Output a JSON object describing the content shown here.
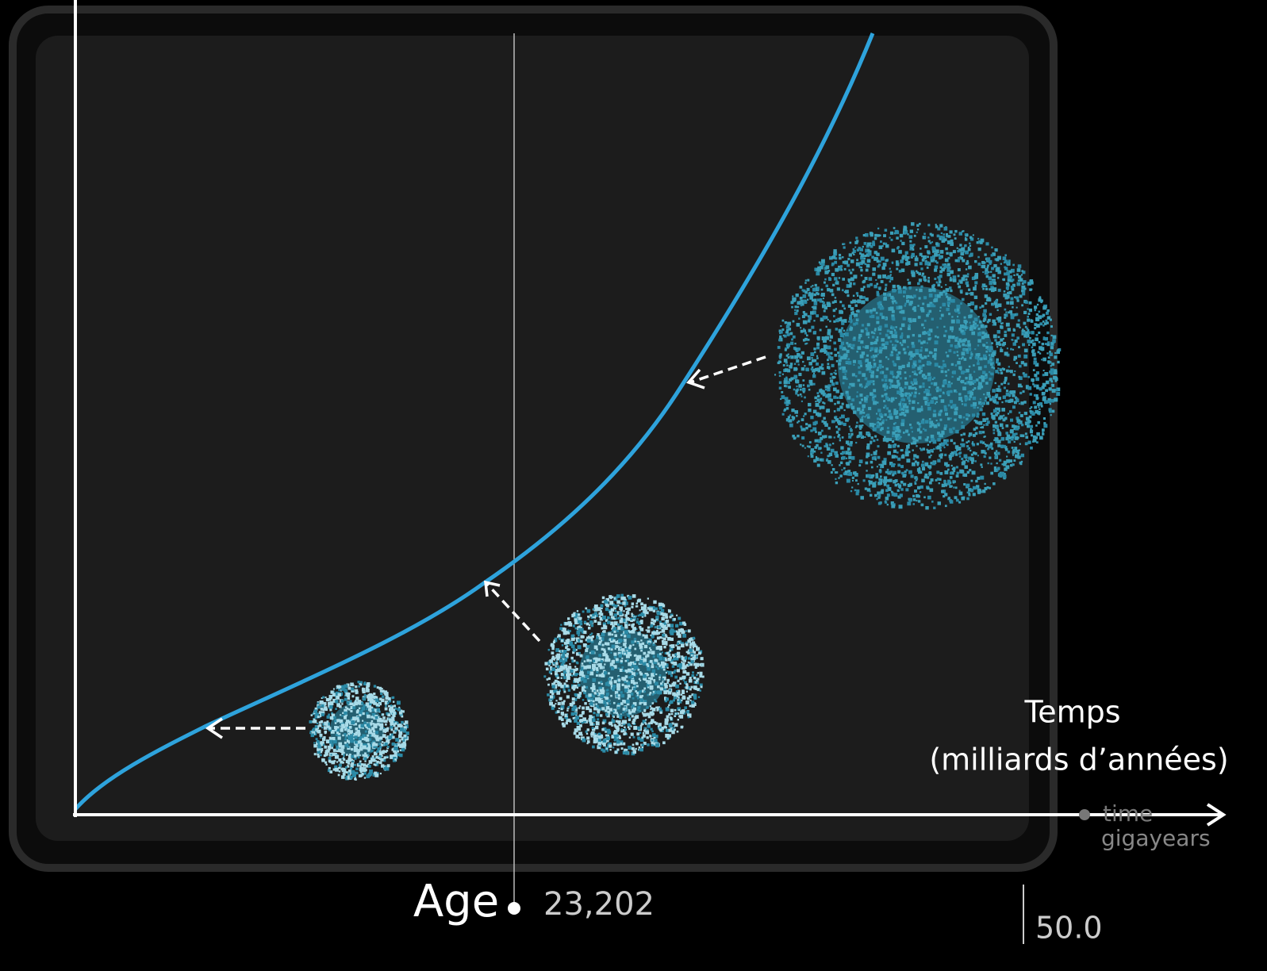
{
  "x_axis": {
    "title": "Temps",
    "subtitle": "(milliards d’années)"
  },
  "overlay": {
    "unit_top": "time",
    "unit_bottom": "gigayears"
  },
  "slider": {
    "label": "Age",
    "value": "23,202",
    "end": "50.0"
  }
}
